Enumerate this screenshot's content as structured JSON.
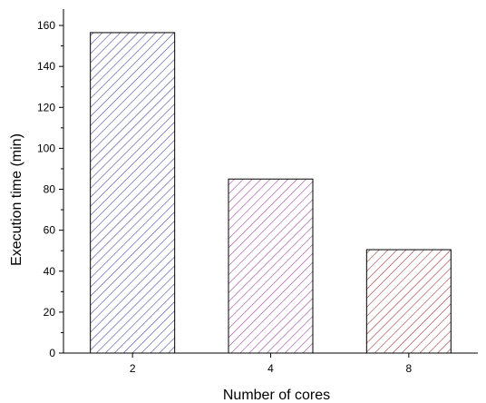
{
  "chart_data": {
    "type": "bar",
    "title": "",
    "xlabel": "Number of cores",
    "ylabel": "Execution time (min)",
    "categories": [
      "2",
      "4",
      "8"
    ],
    "values": [
      156.5,
      85,
      50.5
    ],
    "ylim": [
      0,
      168
    ],
    "yticks": [
      0,
      20,
      40,
      60,
      80,
      100,
      120,
      140,
      160
    ],
    "grid": false,
    "legend": "none",
    "bar_colors": [
      "#3a3a9a",
      "#9a3a9a",
      "#9a2b2b"
    ],
    "bar_fill_pattern": "diagonal-hatch"
  }
}
